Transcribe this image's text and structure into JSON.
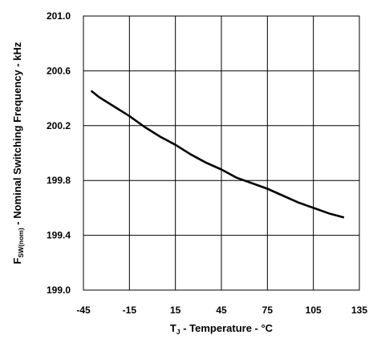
{
  "chart_data": {
    "type": "line",
    "title": "",
    "xlabel": {
      "main": "T",
      "subscript": "J",
      "rest": " - Temperature - °C"
    },
    "ylabel": {
      "main": "F",
      "subscript": "SW(nom)",
      "rest": " - Nominal Switching Frequency - kHz"
    },
    "xlim": [
      -45,
      135
    ],
    "ylim": [
      199.0,
      201.0
    ],
    "x_ticks": [
      -45,
      -15,
      15,
      45,
      75,
      105,
      135
    ],
    "x_tick_labels": [
      "-45",
      "-15",
      "15",
      "45",
      "75",
      "105",
      "135"
    ],
    "y_ticks": [
      199.0,
      199.4,
      199.8,
      200.2,
      200.6,
      201.0
    ],
    "y_tick_labels": [
      "199.0",
      "199.4",
      "199.8",
      "200.2",
      "200.6",
      "201.0"
    ],
    "grid": true,
    "colors": {
      "line": "#000000",
      "grid": "#000000",
      "background": "#ffffff"
    },
    "series": [
      {
        "x": [
          -40,
          -35,
          -25,
          -15,
          -5,
          5,
          15,
          25,
          35,
          45,
          55,
          65,
          75,
          85,
          95,
          105,
          115,
          125
        ],
        "y": [
          200.455,
          200.41,
          200.34,
          200.27,
          200.19,
          200.12,
          200.06,
          199.99,
          199.93,
          199.88,
          199.82,
          199.78,
          199.74,
          199.69,
          199.64,
          199.6,
          199.56,
          199.53
        ]
      }
    ]
  }
}
